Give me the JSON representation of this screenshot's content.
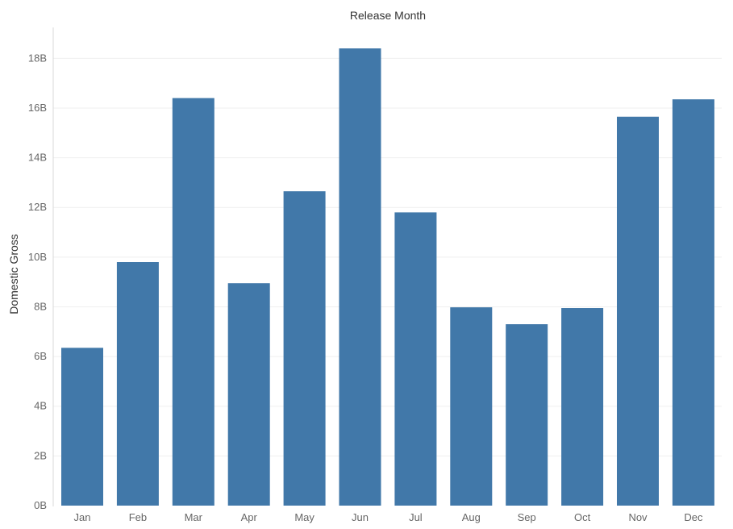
{
  "chart_data": {
    "type": "bar",
    "title": "Release Month",
    "xlabel": "",
    "ylabel": "Domestic Gross",
    "categories": [
      "Jan",
      "Feb",
      "Mar",
      "Apr",
      "May",
      "Jun",
      "Jul",
      "Aug",
      "Sep",
      "Oct",
      "Nov",
      "Dec"
    ],
    "values": [
      6.35,
      9.8,
      16.4,
      8.95,
      12.65,
      18.4,
      11.8,
      7.98,
      7.3,
      7.95,
      15.65,
      16.35
    ],
    "value_unit": "B",
    "yticks": [
      0,
      2,
      4,
      6,
      8,
      10,
      12,
      14,
      16,
      18
    ],
    "ytick_labels": [
      "0B",
      "2B",
      "4B",
      "6B",
      "8B",
      "10B",
      "12B",
      "14B",
      "16B",
      "18B"
    ],
    "ylim": [
      0,
      18.4
    ],
    "grid": true,
    "legend": "none",
    "bar_color": "#4178a9"
  }
}
